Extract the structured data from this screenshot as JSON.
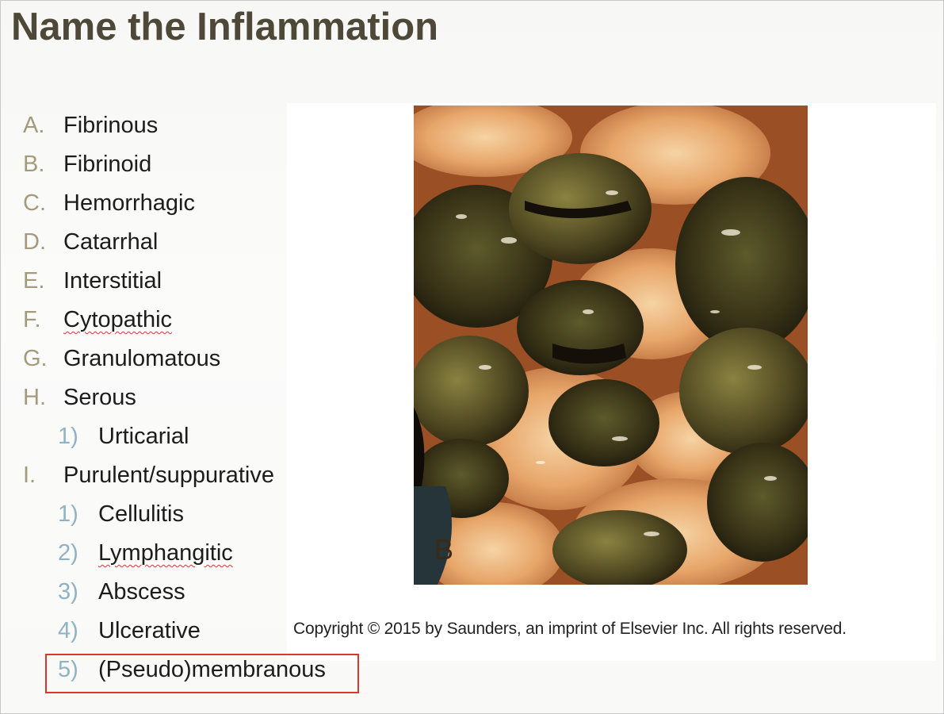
{
  "slide": {
    "title": "Name the Inflammation",
    "items": [
      {
        "marker": "A.",
        "label": "Fibrinous",
        "level": 1
      },
      {
        "marker": "B.",
        "label": "Fibrinoid",
        "level": 1
      },
      {
        "marker": "C.",
        "label": "Hemorrhagic",
        "level": 1
      },
      {
        "marker": "D.",
        "label": "Catarrhal",
        "level": 1
      },
      {
        "marker": "E.",
        "label": "Interstitial",
        "level": 1
      },
      {
        "marker": "F.",
        "label": "Cytopathic",
        "level": 1,
        "spellcheck_flag": true
      },
      {
        "marker": "G.",
        "label": "Granulomatous",
        "level": 1
      },
      {
        "marker": "H.",
        "label": "Serous",
        "level": 1
      },
      {
        "marker": "1)",
        "label": "Urticarial",
        "level": 2
      },
      {
        "marker": "I.",
        "label": "Purulent/suppurative",
        "level": 1
      },
      {
        "marker": "1)",
        "label": "Cellulitis",
        "level": 2
      },
      {
        "marker": "2)",
        "label": "Lymphangitic",
        "level": 2,
        "spellcheck_flag": true
      },
      {
        "marker": "3)",
        "label": "Abscess",
        "level": 2
      },
      {
        "marker": "4)",
        "label": "Ulcerative",
        "level": 2
      },
      {
        "marker": "5)",
        "label": "(Pseudo)membranous",
        "level": 2,
        "highlighted": true
      }
    ],
    "image": {
      "panel_label": "B",
      "copyright": "Copyright © 2015 by Saunders, an imprint of Elsevier Inc. All rights reserved."
    }
  },
  "colors": {
    "title": "#4d4838",
    "level1_marker": "#a49b7c",
    "level2_marker": "#8fb3c3",
    "highlight_border": "#d9372e"
  }
}
